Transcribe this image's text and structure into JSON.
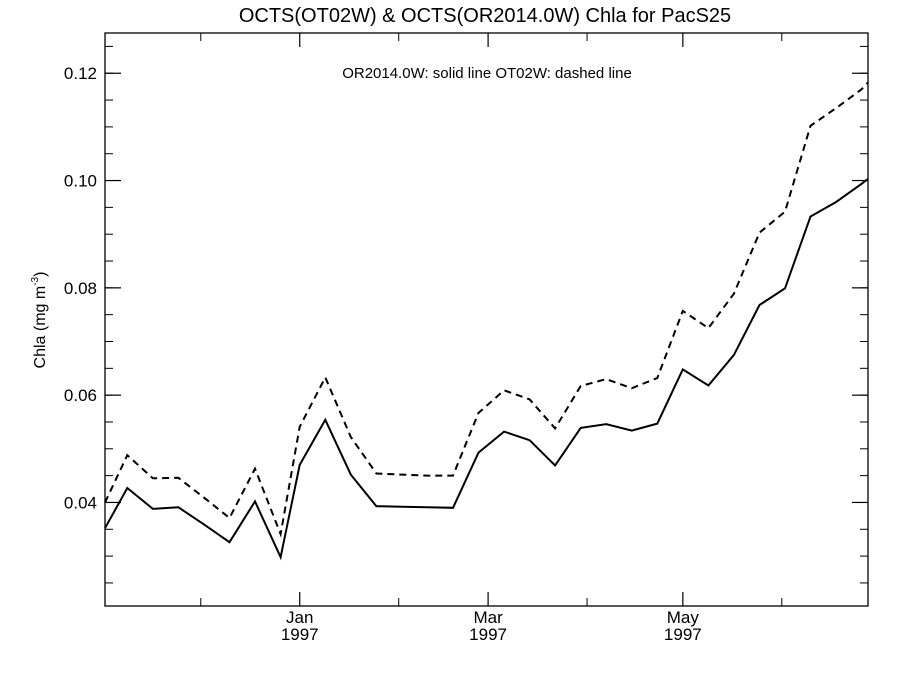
{
  "chart_data": {
    "type": "line",
    "title": "OCTS(OT02W) & OCTS(OR2014.0W)  Chla for PacS25",
    "annotation": "OR2014.0W: solid line   OT02W: dashed line",
    "ylabel_main": "Chla (mg m",
    "ylabel_sup": "-3",
    "ylabel_close": ")",
    "xlim": [
      "1996-11-01",
      "1997-06-28"
    ],
    "ylim": [
      0.0207,
      0.1275
    ],
    "y_ticks": [
      0.04,
      0.06,
      0.08,
      0.1,
      0.12
    ],
    "y_tick_labels": [
      "0.04",
      "0.06",
      "0.08",
      "0.10",
      "0.12"
    ],
    "y_minor_step": 0.005,
    "x_major_ticks": [
      {
        "date": "1997-01-01",
        "month": "Jan",
        "year": "1997"
      },
      {
        "date": "1997-03-01",
        "month": "Mar",
        "year": "1997"
      },
      {
        "date": "1997-05-01",
        "month": "May",
        "year": "1997"
      }
    ],
    "x_minor_ticks": [
      "1996-12-01",
      "1997-02-01",
      "1997-04-01",
      "1997-06-01"
    ],
    "series": [
      {
        "name": "OR2014.0W",
        "style": "solid",
        "color": "#000000",
        "x": [
          "1996-11-01",
          "1996-11-08",
          "1996-11-16",
          "1996-11-24",
          "1996-12-02",
          "1996-12-10",
          "1996-12-18",
          "1996-12-26",
          "1997-01-01",
          "1997-01-09",
          "1997-01-17",
          "1997-01-25",
          "1997-02-02",
          "1997-02-10",
          "1997-02-18",
          "1997-02-26",
          "1997-03-06",
          "1997-03-14",
          "1997-03-22",
          "1997-03-30",
          "1997-04-07",
          "1997-04-15",
          "1997-04-23",
          "1997-05-01",
          "1997-05-09",
          "1997-05-17",
          "1997-05-25",
          "1997-06-02",
          "1997-06-10",
          "1997-06-18",
          "1997-06-26",
          "1997-06-28"
        ],
        "values": [
          0.0352,
          0.0427,
          0.0388,
          0.0391,
          0.0359,
          0.0326,
          0.0402,
          0.0298,
          0.047,
          0.0554,
          0.0452,
          0.0393,
          0.0392,
          0.0391,
          0.039,
          0.0493,
          0.0532,
          0.0516,
          0.0469,
          0.0539,
          0.0546,
          0.0534,
          0.0547,
          0.0648,
          0.0618,
          0.0675,
          0.0768,
          0.0799,
          0.0933,
          0.096,
          0.0994,
          0.1003
        ]
      },
      {
        "name": "OT02W",
        "style": "dashed",
        "color": "#000000",
        "x": [
          "1996-11-01",
          "1996-11-08",
          "1996-11-16",
          "1996-11-24",
          "1996-12-02",
          "1996-12-10",
          "1996-12-18",
          "1996-12-26",
          "1997-01-01",
          "1997-01-09",
          "1997-01-17",
          "1997-01-25",
          "1997-02-02",
          "1997-02-10",
          "1997-02-18",
          "1997-02-26",
          "1997-03-06",
          "1997-03-14",
          "1997-03-22",
          "1997-03-30",
          "1997-04-07",
          "1997-04-15",
          "1997-04-23",
          "1997-05-01",
          "1997-05-09",
          "1997-05-17",
          "1997-05-25",
          "1997-06-02",
          "1997-06-10",
          "1997-06-18",
          "1997-06-26",
          "1997-06-28"
        ],
        "values": [
          0.04,
          0.0488,
          0.0445,
          0.0446,
          0.0409,
          0.0371,
          0.0463,
          0.0341,
          0.0541,
          0.0633,
          0.0522,
          0.0454,
          0.0452,
          0.045,
          0.045,
          0.0567,
          0.0609,
          0.0592,
          0.0538,
          0.0617,
          0.063,
          0.0613,
          0.0632,
          0.0757,
          0.0725,
          0.0789,
          0.0903,
          0.0942,
          0.1102,
          0.1135,
          0.117,
          0.1183
        ]
      }
    ]
  }
}
